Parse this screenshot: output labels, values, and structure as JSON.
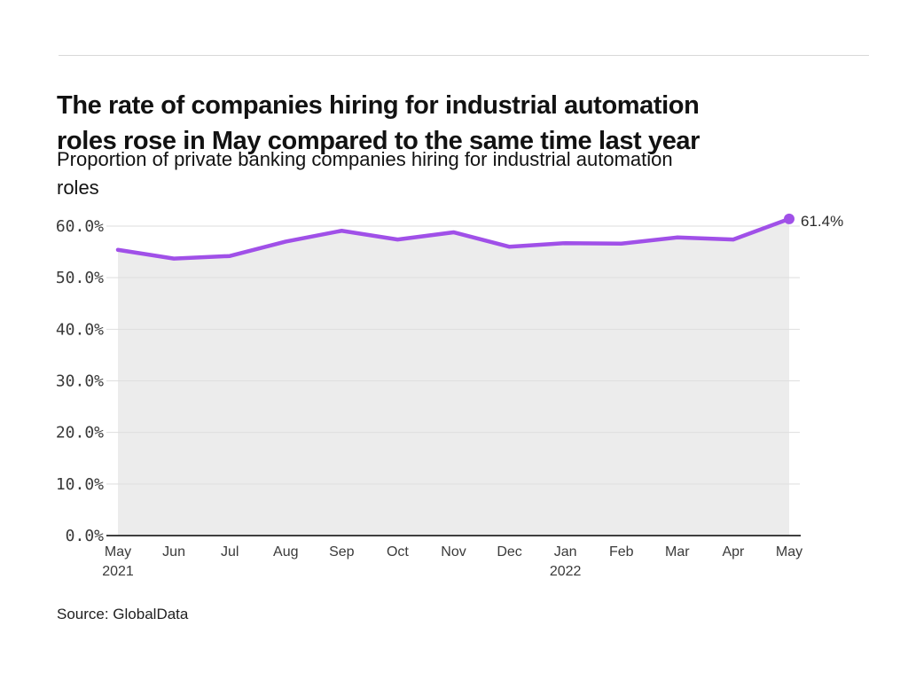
{
  "page": {
    "title_lines": [
      "The rate of companies hiring for industrial automation",
      "roles rose in May compared to the same time last year"
    ],
    "subtitle_lines": [
      "Proportion of private banking companies hiring for industrial automation",
      "roles"
    ],
    "source": "Source: GlobalData"
  },
  "colors": {
    "line": "#a050e8",
    "dot": "#a050e8",
    "area_fill": "#ececec",
    "grid": "#dedede",
    "axis": "#3f3f3f",
    "tick_text": "#3a3a3a",
    "title_text": "#121212",
    "rule": "#d8d8d8"
  },
  "chart_data": {
    "type": "line",
    "title": "The rate of companies hiring for industrial automation roles rose in May compared to the same time last year",
    "subtitle": "Proportion of private banking companies hiring for industrial automation roles",
    "categories": [
      "May 2021",
      "Jun",
      "Jul",
      "Aug",
      "Sep",
      "Oct",
      "Nov",
      "Dec",
      "Jan 2022",
      "Feb",
      "Mar",
      "Apr",
      "May"
    ],
    "series": [
      {
        "name": "Proportion of private banking companies hiring for industrial automation roles",
        "values": [
          55.4,
          53.7,
          54.2,
          57.0,
          59.1,
          57.4,
          58.8,
          56.0,
          56.7,
          56.6,
          57.8,
          57.4,
          61.4
        ]
      }
    ],
    "yticks": [
      0,
      10,
      20,
      30,
      40,
      50,
      60
    ],
    "ytick_labels": [
      "0.0%",
      "10.0%",
      "20.0%",
      "30.0%",
      "40.0%",
      "50.0%",
      "60.0%"
    ],
    "ylim": [
      0,
      63
    ],
    "grid": "horizontal",
    "legend_position": "none",
    "end_label": "61.4%"
  }
}
